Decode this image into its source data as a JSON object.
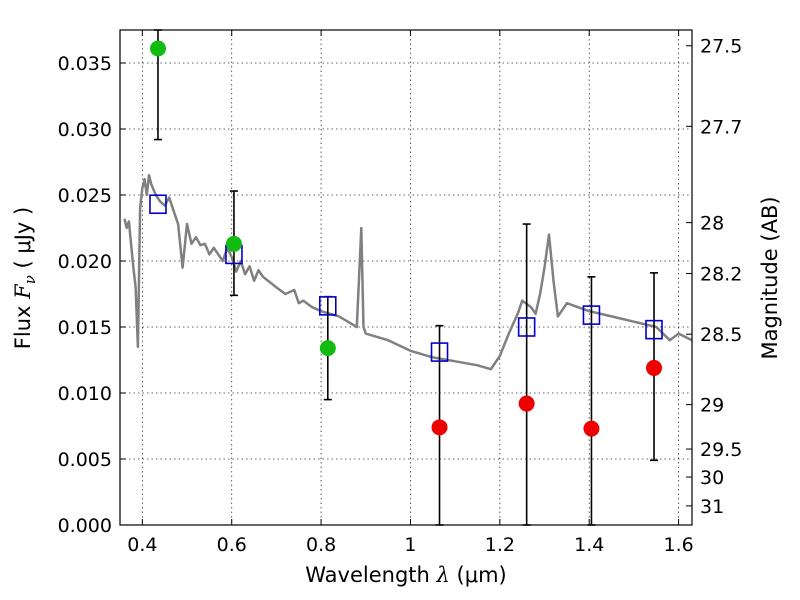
{
  "chart_data": {
    "type": "scatter",
    "title": "",
    "xlabel": "Wavelength",
    "xlabel_symbol": "λ",
    "xlabel_unit": "(μm)",
    "ylabel": "Flux",
    "ylabel_symbol": "F",
    "ylabel_sub": "ν",
    "ylabel_unit": "( μJy )",
    "y2label": "Magnitude (AB)",
    "xlim": [
      0.35,
      1.63
    ],
    "ylim": [
      0.0,
      0.0375
    ],
    "grid": true,
    "x_ticks": [
      0.4,
      0.6,
      0.8,
      1.0,
      1.2,
      1.4,
      1.6
    ],
    "x_tick_labels": [
      "0.4",
      "0.6",
      "0.8",
      "1",
      "1.2",
      "1.4",
      "1.6"
    ],
    "y_ticks": [
      0.0,
      0.005,
      0.01,
      0.015,
      0.02,
      0.025,
      0.03,
      0.035
    ],
    "y_tick_labels": [
      "0.000",
      "0.005",
      "0.010",
      "0.015",
      "0.020",
      "0.025",
      "0.030",
      "0.035"
    ],
    "y2_ticks": [
      27.5,
      27.7,
      28,
      28.2,
      28.5,
      29,
      29.5,
      30,
      31
    ],
    "y2_tick_labels": [
      "27.5",
      "27.7",
      "28",
      "28.2",
      "28.5",
      "29",
      "29.5",
      "30",
      "31"
    ],
    "series": [
      {
        "kind": "line",
        "color": "#808080",
        "x": [
          0.36,
          0.365,
          0.37,
          0.375,
          0.38,
          0.385,
          0.39,
          0.395,
          0.4,
          0.405,
          0.41,
          0.415,
          0.42,
          0.43,
          0.44,
          0.45,
          0.46,
          0.47,
          0.48,
          0.49,
          0.5,
          0.51,
          0.52,
          0.53,
          0.54,
          0.55,
          0.56,
          0.57,
          0.58,
          0.59,
          0.6,
          0.61,
          0.62,
          0.63,
          0.64,
          0.65,
          0.66,
          0.67,
          0.7,
          0.72,
          0.74,
          0.75,
          0.76,
          0.78,
          0.8,
          0.82,
          0.84,
          0.86,
          0.88,
          0.89,
          0.895,
          0.9,
          0.91,
          0.95,
          1.0,
          1.05,
          1.1,
          1.15,
          1.18,
          1.2,
          1.22,
          1.24,
          1.25,
          1.27,
          1.28,
          1.29,
          1.3,
          1.31,
          1.32,
          1.33,
          1.35,
          1.4,
          1.45,
          1.5,
          1.55,
          1.58,
          1.6,
          1.63
        ],
        "y": [
          0.0232,
          0.0225,
          0.023,
          0.0212,
          0.0195,
          0.018,
          0.0135,
          0.024,
          0.0255,
          0.0262,
          0.025,
          0.0265,
          0.0258,
          0.025,
          0.0245,
          0.0242,
          0.0248,
          0.0238,
          0.0228,
          0.0195,
          0.0228,
          0.0213,
          0.0218,
          0.0212,
          0.0213,
          0.0205,
          0.021,
          0.0205,
          0.02,
          0.021,
          0.0203,
          0.0192,
          0.02,
          0.019,
          0.0196,
          0.0185,
          0.0193,
          0.0188,
          0.018,
          0.0175,
          0.0178,
          0.0168,
          0.017,
          0.0165,
          0.0162,
          0.016,
          0.0158,
          0.0154,
          0.015,
          0.0225,
          0.015,
          0.0145,
          0.0144,
          0.014,
          0.0132,
          0.0127,
          0.0124,
          0.0121,
          0.0118,
          0.0128,
          0.0145,
          0.016,
          0.017,
          0.0165,
          0.016,
          0.0175,
          0.0195,
          0.022,
          0.0185,
          0.0158,
          0.0168,
          0.0162,
          0.0158,
          0.0154,
          0.015,
          0.014,
          0.0145,
          0.014
        ]
      },
      {
        "kind": "open-square",
        "color": "#0000cc",
        "x": [
          0.435,
          0.605,
          0.815,
          1.065,
          1.26,
          1.405,
          1.545
        ],
        "y": [
          0.0243,
          0.0205,
          0.0166,
          0.0131,
          0.015,
          0.0159,
          0.0148
        ]
      },
      {
        "kind": "filled-circle",
        "color": "#11bb11",
        "x": [
          0.435,
          0.605,
          0.815
        ],
        "y": [
          0.0361,
          0.0213,
          0.0134
        ],
        "yerr_low": [
          0.0292,
          0.0174,
          0.0095
        ],
        "yerr_high": [
          0.0375,
          0.0253,
          0.0173
        ]
      },
      {
        "kind": "filled-circle",
        "color": "#ee0000",
        "x": [
          1.065,
          1.26,
          1.405,
          1.545
        ],
        "y": [
          0.0074,
          0.0092,
          0.0073,
          0.0119
        ],
        "yerr_low": [
          0.0,
          0.0,
          0.0,
          0.0049
        ],
        "yerr_high": [
          0.0151,
          0.0228,
          0.0188,
          0.0191
        ]
      }
    ]
  }
}
